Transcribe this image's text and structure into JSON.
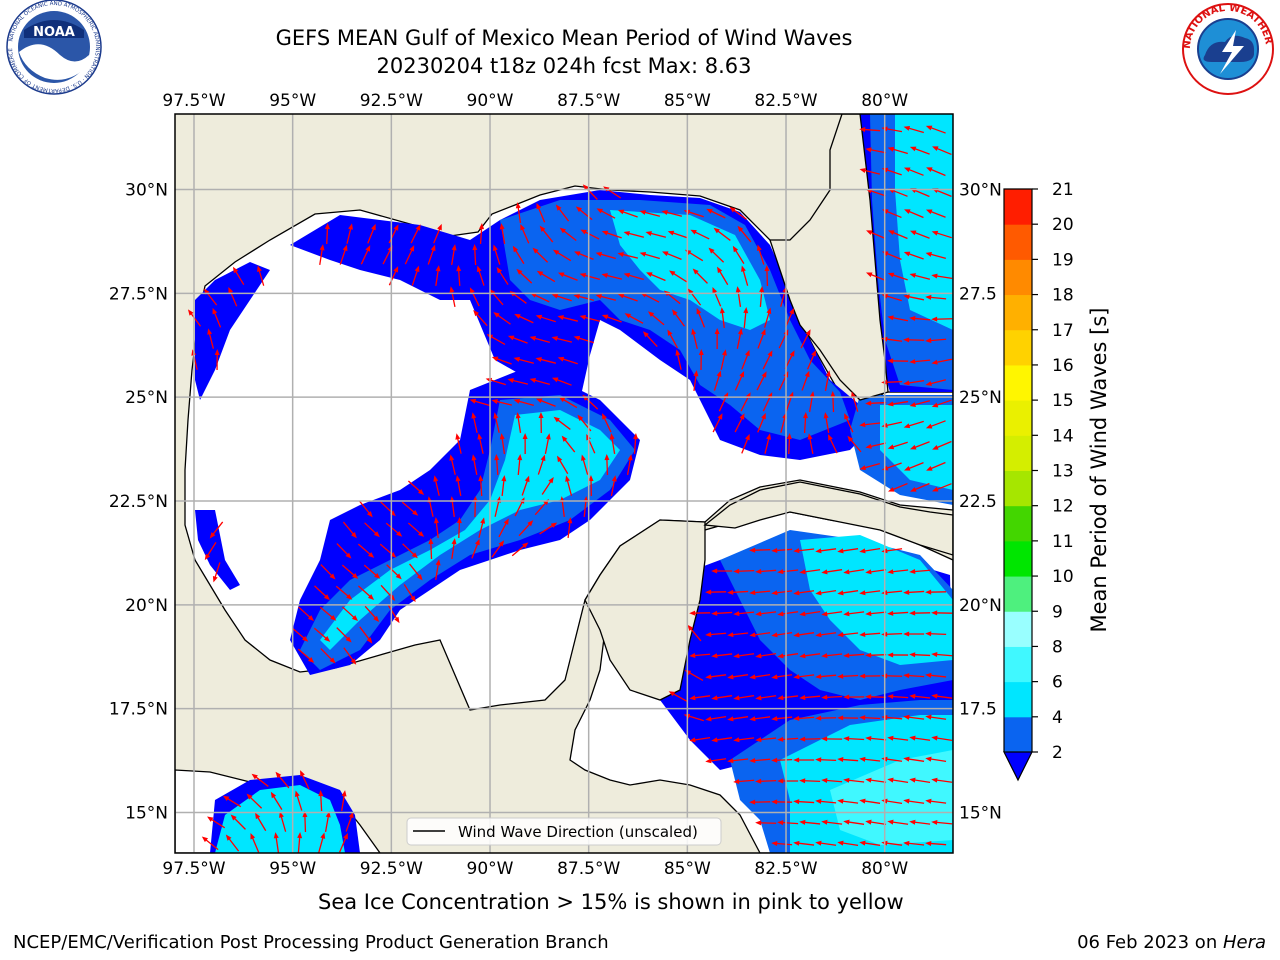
{
  "header": {
    "title_line1": "GEFS MEAN Gulf of Mexico Mean Period of Wind Waves",
    "title_line2": "20230204 t18z 024h fcst   Max: 8.63"
  },
  "logos": {
    "left": {
      "icon": "noaa-logo",
      "text": "NOAA",
      "ring_text": "NATIONAL OCEANIC AND ATMOSPHERIC ADMINISTRATION · U.S. DEPARTMENT OF COMMERCE"
    },
    "right": {
      "icon": "nws-logo",
      "ring_text": "NATIONAL WEATHER SERVICE"
    }
  },
  "map": {
    "lon_labels": [
      "97.5°W",
      "95°W",
      "92.5°W",
      "90°W",
      "87.5°W",
      "85°W",
      "82.5°W",
      "80°W"
    ],
    "lat_labels_left": [
      "30°N",
      "27.5°N",
      "25°N",
      "22.5°N",
      "20°N",
      "17.5°N",
      "15°N"
    ],
    "lat_labels_right": [
      "30°N",
      "27.5",
      "25°N",
      "22.5",
      "20°N",
      "17.5",
      "15°N"
    ],
    "legend_label": "Wind Wave Direction (unscaled)",
    "land_color": "#eeecdc",
    "ocean_no_data_color": "#ffffff",
    "arrow_color": "#ff0000"
  },
  "colorbar": {
    "label": "Mean Period of Wind Waves [s]",
    "ticks": [
      "2",
      "4",
      "6",
      "8",
      "9",
      "10",
      "11",
      "12",
      "13",
      "14",
      "15",
      "16",
      "17",
      "18",
      "19",
      "20",
      "21"
    ],
    "colors": [
      "#0a64f0",
      "#00e6ff",
      "#40f8ff",
      "#99ffff",
      "#4ef07e",
      "#00e600",
      "#43d600",
      "#a6e600",
      "#d4ee00",
      "#eaf000",
      "#fff600",
      "#ffd200",
      "#ffb000",
      "#ff8a00",
      "#ff5a00",
      "#ff1e00"
    ],
    "extend_below_color": "#0000ff"
  },
  "note": "Sea Ice Concentration > 15% is shown in pink to yellow",
  "footer": {
    "left": "NCEP/EMC/Verification Post Processing Product Generation Branch",
    "right_date": "06 Feb 2023 on ",
    "right_machine": "Hera"
  }
}
